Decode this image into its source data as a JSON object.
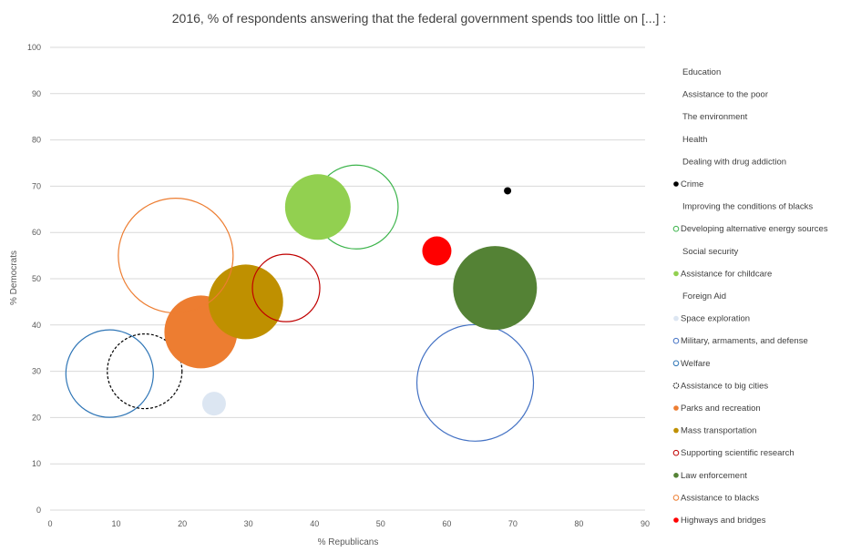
{
  "chart_data": {
    "type": "scatter",
    "title": "2016, % of respondents answering that the federal government spends too little on [...] :",
    "xlabel": "% Republicans",
    "ylabel": "% Democrats",
    "xlim": [
      0,
      90
    ],
    "ylim": [
      0,
      100
    ],
    "xticks": [
      0,
      10,
      20,
      30,
      40,
      50,
      60,
      70,
      80,
      90
    ],
    "yticks": [
      0,
      10,
      20,
      30,
      40,
      50,
      60,
      70,
      80,
      90,
      100
    ],
    "grid": "horizontal",
    "legend_position": "right",
    "series": [
      {
        "name": "Education",
        "x": null,
        "y": null,
        "size": 0,
        "color": "#4472c4",
        "style": "none"
      },
      {
        "name": "Assistance to the poor",
        "x": null,
        "y": null,
        "size": 0,
        "color": "#ed7d31",
        "style": "none"
      },
      {
        "name": "The environment",
        "x": null,
        "y": null,
        "size": 0,
        "color": "#a5a5a5",
        "style": "none"
      },
      {
        "name": "Health",
        "x": null,
        "y": null,
        "size": 0,
        "color": "#ffc000",
        "style": "none"
      },
      {
        "name": "Dealing with drug addiction",
        "x": null,
        "y": null,
        "size": 0,
        "color": "#5b9bd5",
        "style": "none"
      },
      {
        "name": "Crime",
        "x": 69.2,
        "y": 69,
        "size": 4,
        "color": "#000000",
        "style": "filled"
      },
      {
        "name": "Improving the conditions of blacks",
        "x": null,
        "y": null,
        "size": 0,
        "color": "#70ad47",
        "style": "none"
      },
      {
        "name": "Developing alternative energy sources",
        "x": 46.3,
        "y": 65.5,
        "size": 46,
        "color": "#3cb44b",
        "style": "outline"
      },
      {
        "name": "Social security",
        "x": null,
        "y": null,
        "size": 0,
        "color": "#264478",
        "style": "none"
      },
      {
        "name": "Assistance for childcare",
        "x": 40.5,
        "y": 65.5,
        "size": 36,
        "color": "#92d050",
        "style": "filled"
      },
      {
        "name": "Foreign Aid",
        "x": null,
        "y": null,
        "size": 0,
        "color": "#9e480e",
        "style": "none"
      },
      {
        "name": "Space exploration",
        "x": 24.8,
        "y": 23,
        "size": 13,
        "color": "#dce6f2",
        "style": "filled"
      },
      {
        "name": "Military, armaments, and defense",
        "x": 64.3,
        "y": 27.5,
        "size": 64,
        "color": "#4472c4",
        "style": "outline"
      },
      {
        "name": "Welfare",
        "x": 9,
        "y": 29.5,
        "size": 48,
        "color": "#2e75b6",
        "style": "outline"
      },
      {
        "name": "Assistance to big cities",
        "x": 14.3,
        "y": 30,
        "size": 41,
        "color": "#000000",
        "style": "dashed"
      },
      {
        "name": "Parks and recreation",
        "x": 22.8,
        "y": 38.5,
        "size": 40,
        "color": "#ed7d31",
        "style": "filled"
      },
      {
        "name": "Mass transportation",
        "x": 29.6,
        "y": 45,
        "size": 41,
        "color": "#bf9000",
        "style": "filled"
      },
      {
        "name": "Supporting scientific research",
        "x": 35.7,
        "y": 48,
        "size": 37,
        "color": "#c00000",
        "style": "outline"
      },
      {
        "name": "Law enforcement",
        "x": 67.3,
        "y": 48,
        "size": 46,
        "color": "#548235",
        "style": "filled"
      },
      {
        "name": "Assistance to blacks",
        "x": 19,
        "y": 55,
        "size": 63,
        "color": "#ed7d31",
        "style": "outline"
      },
      {
        "name": "Highways and bridges",
        "x": 58.5,
        "y": 56,
        "size": 16,
        "color": "#ff0000",
        "style": "filled"
      }
    ]
  }
}
